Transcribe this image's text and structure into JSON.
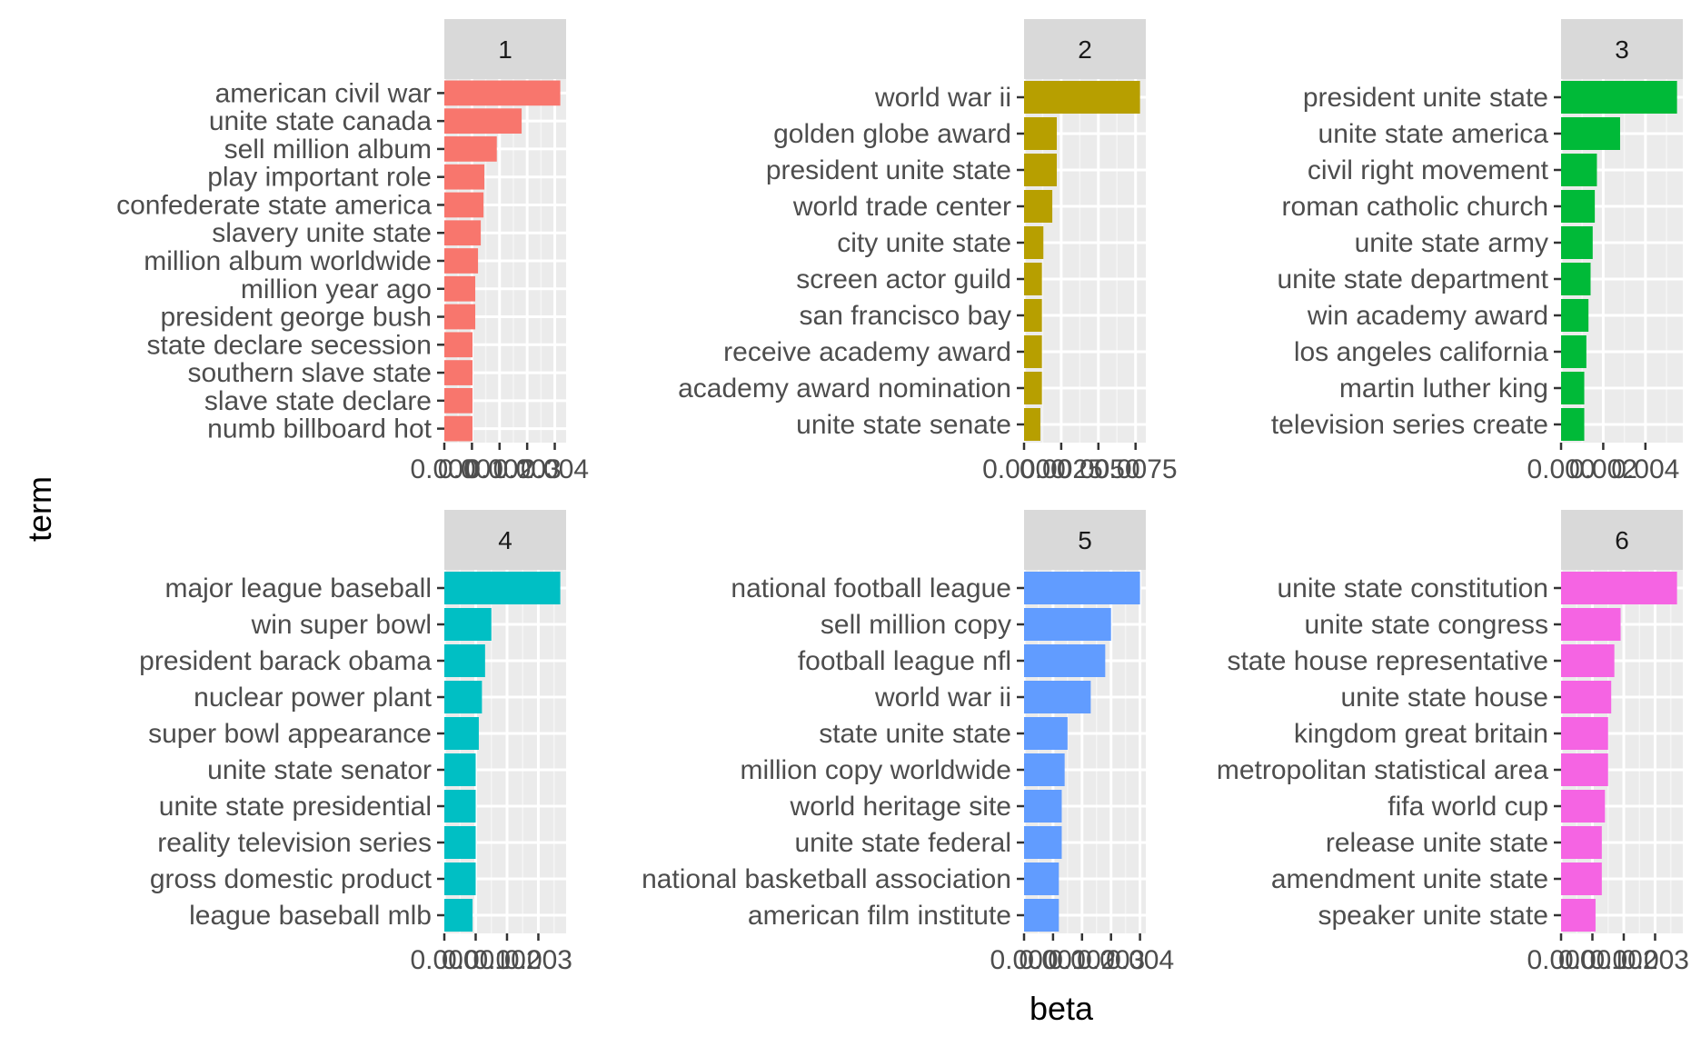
{
  "chart_data": {
    "type": "bar",
    "orientation": "horizontal",
    "layout": "facets 2 rows x 3 columns",
    "xlabel": "beta",
    "ylabel": "term",
    "grid": true,
    "facets": [
      {
        "label": "1",
        "color": "#F8766D",
        "xlim": [
          0,
          0.0042
        ],
        "xticks": [
          "0.000",
          "0.001",
          "0.002",
          "0.003",
          "0.004"
        ],
        "xtick_values": [
          0,
          0.001,
          0.002,
          0.003,
          0.004
        ],
        "terms": [
          "american civil war",
          "unite state canada",
          "sell million album",
          "play important role",
          "confederate state america",
          "slavery unite state",
          "million album worldwide",
          "million year ago",
          "president george bush",
          "state declare secession",
          "southern slave state",
          "slave state declare",
          "numb billboard hot"
        ],
        "values": [
          0.0042,
          0.0028,
          0.0019,
          0.00145,
          0.00142,
          0.00132,
          0.00122,
          0.00112,
          0.00112,
          0.00102,
          0.00102,
          0.00102,
          0.00102
        ]
      },
      {
        "label": "2",
        "color": "#B79F00",
        "xlim": [
          0,
          0.0078
        ],
        "xticks": [
          "0.0000",
          "0.0025",
          "0.0050",
          "0.0075"
        ],
        "xtick_values": [
          0,
          0.0025,
          0.005,
          0.0075
        ],
        "terms": [
          "world war ii",
          "golden globe award",
          "president unite state",
          "world trade center",
          "city unite state",
          "screen actor guild",
          "san francisco bay",
          "receive academy award",
          "academy award nomination",
          "unite state senate"
        ],
        "values": [
          0.0078,
          0.0022,
          0.0022,
          0.0019,
          0.0013,
          0.0012,
          0.0012,
          0.0012,
          0.0012,
          0.0011
        ]
      },
      {
        "label": "3",
        "color": "#00BA38",
        "xlim": [
          0,
          0.0055
        ],
        "xticks": [
          "0.000",
          "0.002",
          "0.004"
        ],
        "xtick_values": [
          0,
          0.002,
          0.004
        ],
        "terms": [
          "president unite state",
          "unite state america",
          "civil right movement",
          "roman catholic church",
          "unite state army",
          "unite state department",
          "win academy award",
          "los angeles california",
          "martin luther king",
          "television series create"
        ],
        "values": [
          0.0055,
          0.0028,
          0.0017,
          0.0016,
          0.0015,
          0.0014,
          0.0013,
          0.0012,
          0.0011,
          0.0011
        ]
      },
      {
        "label": "4",
        "color": "#00BFC4",
        "xlim": [
          0,
          0.0037
        ],
        "xticks": [
          "0.000",
          "0.001",
          "0.002",
          "0.003"
        ],
        "xtick_values": [
          0,
          0.001,
          0.002,
          0.003
        ],
        "terms": [
          "major league baseball",
          "win super bowl",
          "president barack obama",
          "nuclear power plant",
          "super bowl appearance",
          "unite state senator",
          "unite state presidential",
          "reality television series",
          "gross domestic product",
          "league baseball mlb"
        ],
        "values": [
          0.0037,
          0.0015,
          0.0013,
          0.0012,
          0.0011,
          0.001,
          0.001,
          0.001,
          0.001,
          0.0009
        ]
      },
      {
        "label": "5",
        "color": "#619CFF",
        "xlim": [
          0,
          0.004
        ],
        "xticks": [
          "0.000",
          "0.001",
          "0.002",
          "0.003",
          "0.004"
        ],
        "xtick_values": [
          0,
          0.001,
          0.002,
          0.003,
          0.004
        ],
        "terms": [
          "national football league",
          "sell million copy",
          "football league nfl",
          "world war ii",
          "state unite state",
          "million copy worldwide",
          "world heritage site",
          "unite state federal",
          "national basketball association",
          "american film institute"
        ],
        "values": [
          0.004,
          0.003,
          0.0028,
          0.0023,
          0.0015,
          0.0014,
          0.0013,
          0.0013,
          0.0012,
          0.0012
        ]
      },
      {
        "label": "6",
        "color": "#F564E3",
        "xlim": [
          0,
          0.0037
        ],
        "xticks": [
          "0.000",
          "0.001",
          "0.002",
          "0.003"
        ],
        "xtick_values": [
          0,
          0.001,
          0.002,
          0.003
        ],
        "terms": [
          "unite state constitution",
          "unite state congress",
          "state house representative",
          "unite state house",
          "kingdom great britain",
          "metropolitan statistical area",
          "fifa world cup",
          "release unite state",
          "amendment unite state",
          "speaker unite state"
        ],
        "values": [
          0.0037,
          0.0019,
          0.0017,
          0.0016,
          0.0015,
          0.0015,
          0.0014,
          0.0013,
          0.0013,
          0.0011
        ]
      }
    ]
  }
}
